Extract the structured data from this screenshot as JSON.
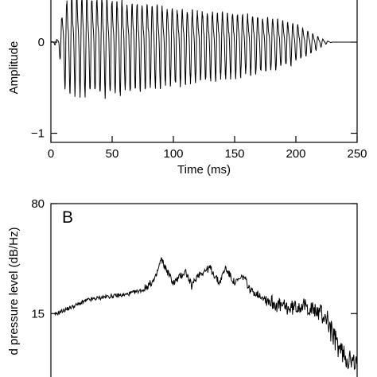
{
  "chart_data": [
    {
      "type": "line",
      "panel_label": "",
      "xlabel": "Time (ms)",
      "ylabel": "Amplitude",
      "xlim": [
        0,
        250
      ],
      "ylim": [
        -1.1,
        0.55
      ],
      "x_ticks": [
        0,
        50,
        100,
        150,
        200,
        250
      ],
      "y_ticks": [
        -1,
        0
      ],
      "x_tick_labels": [
        "0",
        "50",
        "100",
        "150",
        "200",
        "250"
      ],
      "y_tick_labels": [
        "−1",
        "0"
      ],
      "grid": false,
      "series": [
        {
          "envelope": {
            "t_ms": [
              0,
              3,
              6,
              8,
              10,
              15,
              20,
              30,
              40,
              50,
              60,
              80,
              100,
              120,
              140,
              160,
              180,
              200,
              210,
              220,
              225,
              230,
              250
            ],
            "upper": [
              0,
              0.02,
              0.05,
              0.25,
              0.5,
              0.62,
              0.65,
              0.63,
              0.6,
              0.58,
              0.55,
              0.5,
              0.46,
              0.42,
              0.4,
              0.37,
              0.33,
              0.25,
              0.15,
              0.06,
              0.02,
              0,
              0
            ],
            "lower": [
              0,
              -0.03,
              -0.05,
              -0.25,
              -0.5,
              -0.55,
              -0.56,
              -0.57,
              -0.58,
              -0.6,
              -0.56,
              -0.52,
              -0.48,
              -0.44,
              -0.4,
              -0.36,
              -0.32,
              -0.22,
              -0.14,
              -0.06,
              -0.02,
              0,
              0
            ]
          },
          "period_ms": 4.1
        }
      ]
    },
    {
      "type": "line",
      "panel_label": "B",
      "xlabel": "",
      "ylabel": "d pressure level (dB/Hz)",
      "ylim": [
        -30,
        80
      ],
      "y_ticks": [
        15,
        80
      ],
      "y_tick_labels": [
        "15",
        "80"
      ],
      "grid": false,
      "series": [
        {
          "x": [
            0,
            0.03,
            0.07,
            0.12,
            0.18,
            0.24,
            0.3,
            0.34,
            0.36,
            0.38,
            0.4,
            0.44,
            0.46,
            0.48,
            0.52,
            0.55,
            0.57,
            0.6,
            0.63,
            0.65,
            0.68,
            0.7,
            0.74,
            0.78,
            0.82,
            0.86,
            0.9,
            0.92,
            0.95,
            1.0
          ],
          "y": [
            13,
            16,
            19,
            23,
            25,
            26,
            29,
            35,
            47,
            40,
            33,
            40,
            31,
            38,
            42,
            33,
            42,
            33,
            37,
            29,
            26,
            24,
            20,
            18,
            20,
            17,
            13,
            2,
            -8,
            -17
          ]
        }
      ]
    }
  ]
}
